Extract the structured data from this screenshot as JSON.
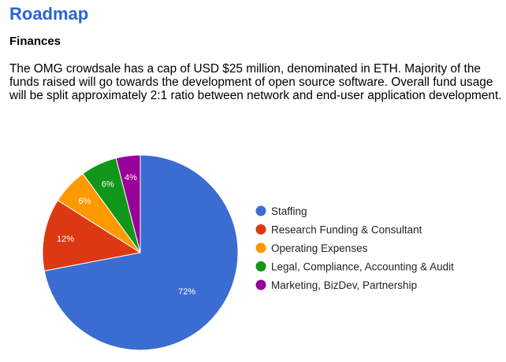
{
  "page": {
    "title": "Roadmap",
    "subtitle": "Finances",
    "paragraph": "The OMG crowdsale has a cap of USD $25 million, denominated in ETH. Majority of the funds raised will go towards the development of open source software. Overall fund usage will be split approximately 2:1 ratio between network and end-user application development."
  },
  "chart_data": {
    "type": "pie",
    "title": "",
    "legend_position": "right",
    "start_angle": "top, clockwise",
    "slices": [
      {
        "name": "Staffing",
        "value": 72,
        "label": "72%",
        "color": "#3b6cd1"
      },
      {
        "name": "Research Funding & Consultant",
        "value": 12,
        "label": "12%",
        "color": "#dc3912"
      },
      {
        "name": "Operating Expenses",
        "value": 6,
        "label": "6%",
        "color": "#ff9900"
      },
      {
        "name": "Legal, Compliance, Accounting & Audit",
        "value": 6,
        "label": "6%",
        "color": "#109618"
      },
      {
        "name": "Marketing, BizDev, Partnership",
        "value": 4,
        "label": "4%",
        "color": "#990099"
      }
    ]
  }
}
